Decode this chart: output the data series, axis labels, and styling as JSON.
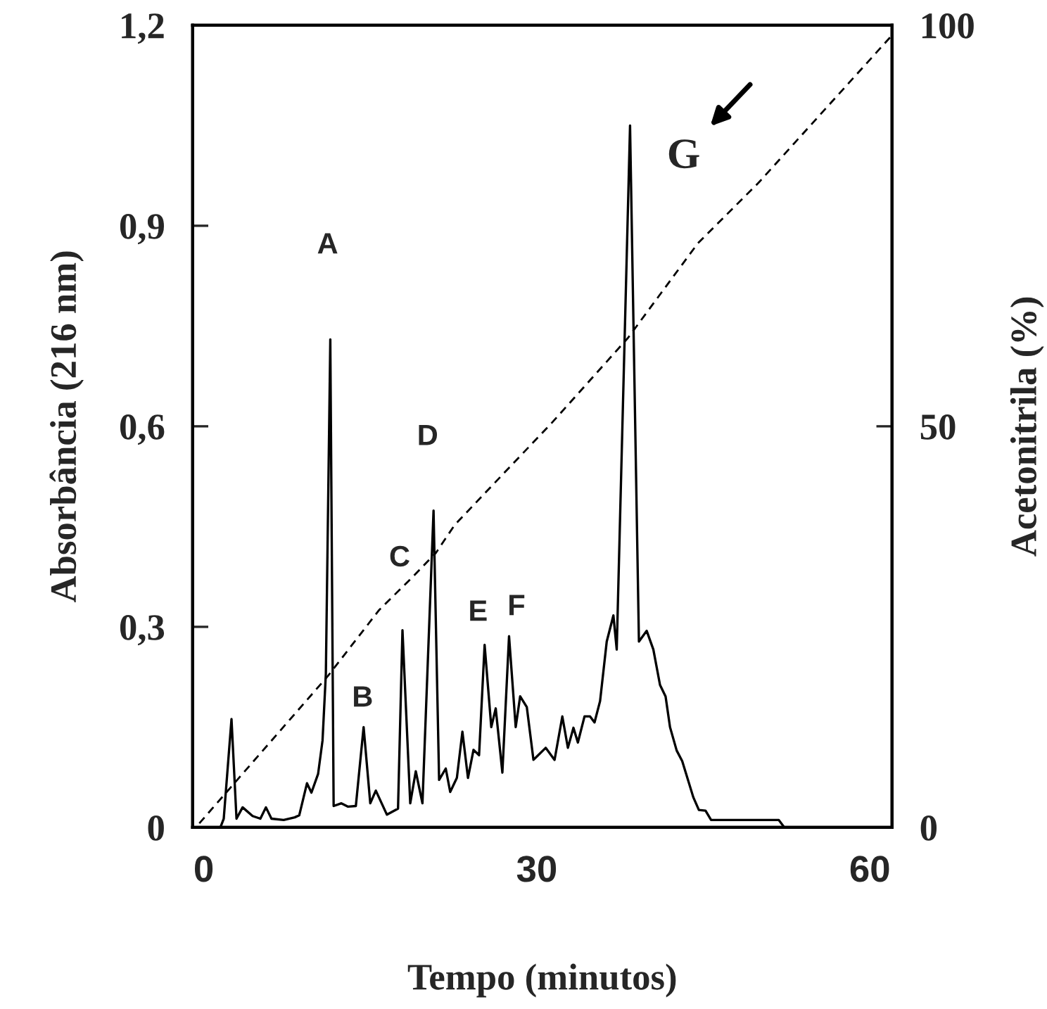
{
  "chart_data": {
    "type": "line",
    "xlabel": "Tempo (minutos)",
    "ylabel": "Absorbância (216 nm)",
    "y2label": "Acetonitrila (%)",
    "xlim": [
      -1,
      62
    ],
    "xticks": [
      0,
      30,
      60
    ],
    "ylim": [
      0,
      1.2
    ],
    "yticks": [
      {
        "value": 0,
        "label": "0"
      },
      {
        "value": 0.3,
        "label": "0,3"
      },
      {
        "value": 0.6,
        "label": "0,6"
      },
      {
        "value": 0.9,
        "label": "0,9"
      },
      {
        "value": 1.2,
        "label": "1,2"
      }
    ],
    "y2lim": [
      0,
      100
    ],
    "y2ticks": [
      0,
      50,
      100
    ],
    "grid": false,
    "legend": false,
    "series": [
      {
        "color": "#000000",
        "line_style": "solid",
        "x": [
          1.5,
          1.8,
          2.5,
          2.95,
          3.5,
          4.4,
          5.1,
          5.6,
          6.1,
          7.2,
          8.2,
          8.6,
          9.3,
          9.7,
          10.3,
          10.7,
          11.0,
          11.4,
          11.7,
          12.4,
          13.0,
          13.7,
          14.4,
          15.0,
          15.5,
          16.5,
          17.5,
          17.9,
          18.6,
          19.1,
          19.7,
          20.7,
          21.2,
          21.8,
          22.2,
          22.8,
          23.3,
          23.8,
          24.3,
          24.8,
          25.3,
          25.9,
          26.3,
          26.9,
          27.5,
          28.1,
          28.5,
          29.1,
          29.7,
          30.8,
          31.6,
          32.3,
          32.8,
          33.3,
          33.7,
          34.3,
          34.8,
          35.2,
          35.7,
          36.3,
          36.9,
          37.2,
          38.4,
          39.2,
          39.9,
          40.5,
          41.1,
          41.6,
          42.0,
          42.6,
          43.1,
          44.1,
          44.6,
          45.2,
          45.7,
          51.8,
          52.3
        ],
        "values": [
          0,
          0.013,
          0.162,
          0.013,
          0.03,
          0.017,
          0.013,
          0.03,
          0.013,
          0.011,
          0.015,
          0.018,
          0.066,
          0.052,
          0.08,
          0.13,
          0.23,
          0.73,
          0.032,
          0.036,
          0.031,
          0.032,
          0.15,
          0.036,
          0.055,
          0.019,
          0.028,
          0.295,
          0.036,
          0.084,
          0.036,
          0.474,
          0.071,
          0.088,
          0.053,
          0.074,
          0.143,
          0.074,
          0.116,
          0.108,
          0.273,
          0.15,
          0.178,
          0.082,
          0.286,
          0.15,
          0.196,
          0.18,
          0.101,
          0.119,
          0.101,
          0.166,
          0.119,
          0.149,
          0.127,
          0.166,
          0.166,
          0.157,
          0.189,
          0.278,
          0.317,
          0.266,
          1.05,
          0.278,
          0.294,
          0.266,
          0.213,
          0.196,
          0.15,
          0.115,
          0.099,
          0.045,
          0.026,
          0.025,
          0.011,
          0.011,
          0
        ]
      },
      {
        "color": "#000000",
        "line_style": "dashed",
        "axis": "y2",
        "x": [
          -0.4,
          11.2,
          15.8,
          18.8,
          20.9,
          22.6,
          31.4,
          38.2,
          44.5,
          50.0,
          61.9
        ],
        "values": [
          0.5,
          18.9,
          27.1,
          31.2,
          34.2,
          37.7,
          50.5,
          61,
          72.8,
          80.4,
          98.6
        ]
      }
    ],
    "annotations": [
      "A",
      "B",
      "C",
      "D",
      "E",
      "F",
      "G"
    ]
  }
}
